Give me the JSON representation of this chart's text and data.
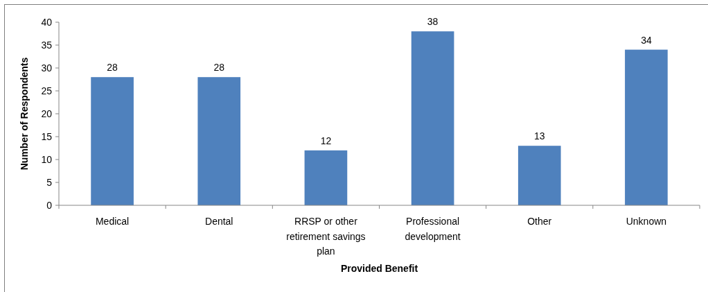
{
  "chart_data": {
    "type": "bar",
    "xlabel": "Provided Benefit",
    "ylabel": "Number of Respondents",
    "categories": [
      "Medical",
      "Dental",
      "RRSP or other retirement savings plan",
      "Professional development",
      "Other",
      "Unknown"
    ],
    "values": [
      28,
      28,
      12,
      38,
      13,
      34
    ],
    "color": "#4f81bd",
    "ylim": [
      0,
      40
    ],
    "yticks": [
      0,
      5,
      10,
      15,
      20,
      25,
      30,
      35,
      40
    ],
    "data_labels": true
  }
}
